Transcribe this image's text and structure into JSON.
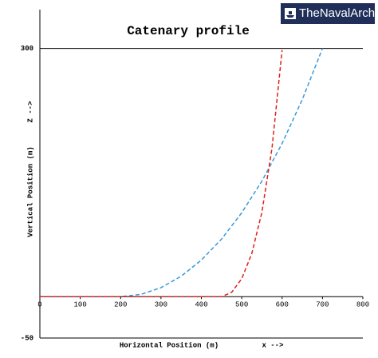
{
  "brand": "TheNavalArch",
  "chart_data": {
    "type": "line",
    "title": "Catenary profile",
    "xlabel": "Horizontal Position (m)",
    "xlabel_arrow": "x -->",
    "ylabel": "Vertical Position (m)",
    "ylabel_arrow": "Z -->",
    "xlim": [
      0,
      800
    ],
    "xticks": [
      0,
      100,
      200,
      300,
      400,
      500,
      600,
      700,
      800
    ],
    "ylim": [
      -50,
      347
    ],
    "yticks": [
      300,
      -50
    ],
    "series": [
      {
        "color": "#3a9ad9",
        "x": [
          0,
          100,
          200,
          250,
          300,
          350,
          400,
          450,
          500,
          550,
          600,
          650,
          700
        ],
        "values": [
          0,
          0,
          0,
          2.7,
          10.9,
          24.7,
          44.2,
          69.6,
          101.4,
          139.7,
          185.2,
          238.3,
          300
        ]
      },
      {
        "color": "#e0201b",
        "x": [
          0,
          200,
          450,
          475,
          500,
          525,
          550,
          575,
          600
        ],
        "values": [
          0,
          0,
          0,
          5.2,
          21.7,
          52.2,
          102.1,
          179.7,
          298.2
        ]
      }
    ]
  }
}
